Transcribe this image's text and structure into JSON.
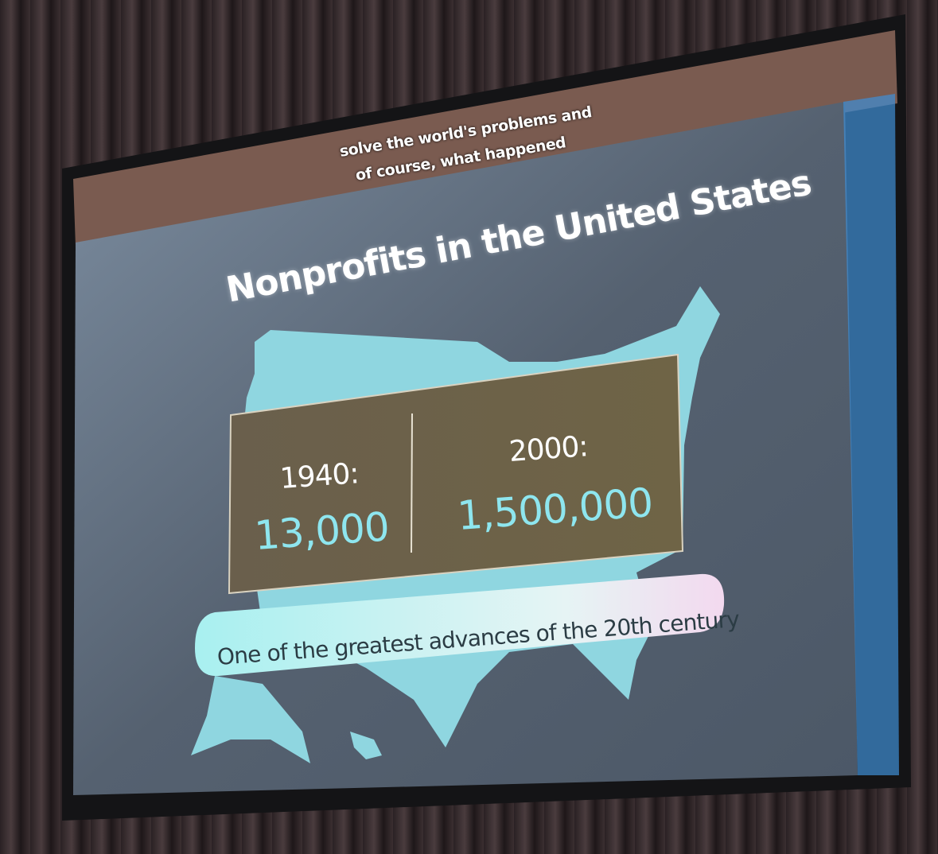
{
  "subtitle_caption": {
    "line1": "solve the world's problems and",
    "line2": "of course, what happened"
  },
  "slide": {
    "title": "Nonprofits in the United States",
    "stats": [
      {
        "year": "1940:",
        "value": "13,000"
      },
      {
        "year": "2000:",
        "value": "1,500,000"
      }
    ],
    "tagline": "One of the greatest advances of the 20th century"
  },
  "colors": {
    "map": "#8fd6e0",
    "slide_bg": "#5d6a7a",
    "accent_number": "#8ee6ef",
    "stat_box": "#6b5f4a"
  }
}
